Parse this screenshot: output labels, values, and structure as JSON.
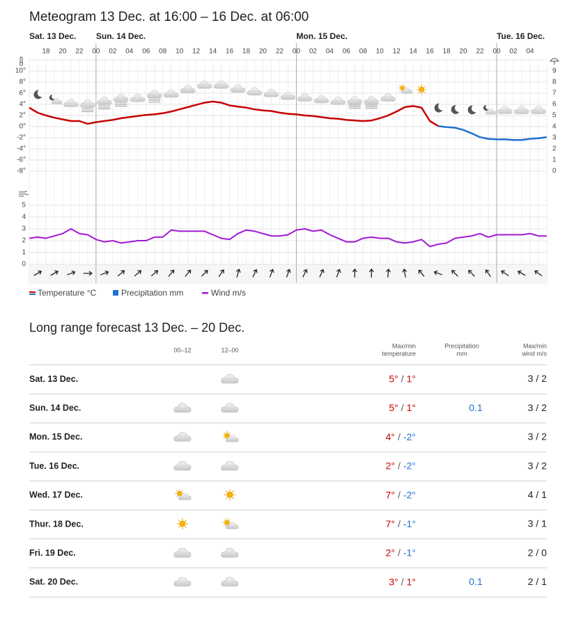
{
  "chart_data": {
    "type": "meteogram",
    "title": "Meteogram 13 Dec. at 16:00 – 16 Dec. at 06:00",
    "days": [
      "Sat. 13 Dec.",
      "Sun. 14 Dec.",
      "Mon. 15 Dec.",
      "Tue. 16 Dec."
    ],
    "categories": [
      null,
      null,
      "18",
      null,
      "20",
      null,
      "22",
      null,
      "00",
      null,
      "02",
      null,
      "04",
      null,
      "06",
      null,
      "08",
      null,
      "10",
      null,
      "12",
      null,
      "14",
      null,
      "16",
      null,
      "18",
      null,
      "20",
      null,
      "22",
      null,
      "00",
      null,
      "02",
      null,
      "04",
      null,
      "06",
      null,
      "08",
      null,
      "10",
      null,
      "12",
      null,
      "14",
      null,
      "16",
      null,
      "18",
      null,
      "20",
      null,
      "22",
      null,
      "00",
      null,
      "02",
      null,
      "04",
      null,
      null
    ],
    "series": [
      {
        "name": "Temperature °C",
        "color": "#c60000",
        "color_below_zero": "#1f6fd1",
        "values": [
          3.4,
          2.5,
          2.0,
          1.6,
          1.3,
          1.0,
          1.0,
          0.5,
          0.8,
          1.0,
          1.2,
          1.5,
          1.7,
          1.9,
          2.1,
          2.2,
          2.4,
          2.7,
          3.1,
          3.5,
          3.9,
          4.3,
          4.5,
          4.3,
          3.8,
          3.6,
          3.4,
          3.1,
          2.9,
          2.8,
          2.5,
          2.3,
          2.2,
          2.0,
          1.9,
          1.7,
          1.5,
          1.4,
          1.2,
          1.1,
          1.0,
          1.1,
          1.5,
          2.0,
          2.7,
          3.5,
          3.7,
          3.4,
          1.0,
          0.1,
          -0.1,
          -0.2,
          -0.6,
          -1.2,
          -1.9,
          -2.2,
          -2.3,
          -2.3,
          -2.4,
          -2.4,
          -2.2,
          -2.1,
          -1.9
        ]
      },
      {
        "name": "Precipitation mm",
        "color": "#1f6fd1"
      },
      {
        "name": "Wind m/s",
        "color": "#a018d6",
        "values": [
          2.2,
          2.3,
          2.2,
          2.4,
          2.6,
          3.0,
          2.6,
          2.5,
          2.1,
          1.9,
          2.0,
          1.8,
          1.9,
          2.0,
          2.0,
          2.3,
          2.3,
          2.9,
          2.8,
          2.8,
          2.8,
          2.8,
          2.5,
          2.2,
          2.1,
          2.6,
          2.9,
          2.8,
          2.6,
          2.4,
          2.4,
          2.5,
          2.9,
          3.0,
          2.8,
          2.9,
          2.5,
          2.2,
          1.9,
          1.9,
          2.2,
          2.3,
          2.2,
          2.2,
          1.9,
          1.8,
          1.9,
          2.1,
          1.5,
          1.7,
          1.8,
          2.2,
          2.3,
          2.4,
          2.6,
          2.3,
          2.5,
          2.5,
          2.5,
          2.5,
          2.6,
          2.4,
          2.4
        ]
      }
    ],
    "ylim": [
      -10,
      12
    ],
    "yticks": [
      {
        "value": 10,
        "label": "10°"
      },
      {
        "value": 8,
        "label": "8°"
      },
      {
        "value": 6,
        "label": "6°"
      },
      {
        "value": 4,
        "label": "4°"
      },
      {
        "value": 2,
        "label": "2°"
      },
      {
        "value": 0,
        "label": "0°"
      },
      {
        "value": -2,
        "label": "-2°"
      },
      {
        "value": -4,
        "label": "-4°"
      },
      {
        "value": -6,
        "label": "-6°"
      },
      {
        "value": -8,
        "label": "-8°"
      }
    ],
    "y2lim": [
      -1,
      10
    ],
    "y2ticks": [
      9,
      8,
      7,
      6,
      5,
      4,
      3,
      2,
      1,
      0
    ],
    "wind_ylim": [
      0,
      6
    ],
    "wind_yticks": [
      0,
      1,
      2,
      3,
      4,
      5
    ],
    "wind_direction": [
      -30,
      -30,
      -20,
      0,
      -20,
      -40,
      -40,
      -40,
      -50,
      -50,
      -45,
      -55,
      -75,
      -65,
      -70,
      -70,
      -65,
      -65,
      -70,
      -90,
      -90,
      -85,
      -100,
      -130,
      -160,
      -135,
      -135,
      -125,
      -145,
      -150,
      -145
    ],
    "grid": true
  },
  "forecast": {
    "title": "Long range forecast 13 Dec. – 20 Dec.",
    "headers": {
      "morning": "00–12",
      "afternoon": "12–00",
      "temperature": [
        "Max/min",
        "temperature"
      ],
      "precipitation": [
        "Precipitation",
        "mm"
      ],
      "wind": [
        "Max/min",
        "wind m/s"
      ]
    },
    "separator": "/",
    "rows": [
      {
        "day": "Sat. 13 Dec.",
        "max": "5°",
        "min": "1°",
        "wind": "3 / 2"
      },
      {
        "day": "Sun. 14 Dec.",
        "max": "5°",
        "min": "1°",
        "precipitation": "0.1",
        "wind": "3 / 2"
      },
      {
        "day": "Mon. 15 Dec.",
        "max": "4°",
        "min": "-2°",
        "wind": "3 / 2"
      },
      {
        "day": "Tue. 16 Dec.",
        "max": "2°",
        "min": "-2°",
        "wind": "3 / 2"
      },
      {
        "day": "Wed. 17 Dec.",
        "max": "7°",
        "min": "-2°",
        "wind": "4 / 1"
      },
      {
        "day": "Thur. 18 Dec.",
        "max": "7°",
        "min": "-1°",
        "wind": "3 / 1"
      },
      {
        "day": "Fri. 19 Dec.",
        "max": "2°",
        "min": "-1°",
        "wind": "2 / 0"
      },
      {
        "day": "Sat. 20 Dec.",
        "max": "3°",
        "min": "1°",
        "precipitation": "0.1",
        "wind": "2 / 1"
      }
    ]
  }
}
